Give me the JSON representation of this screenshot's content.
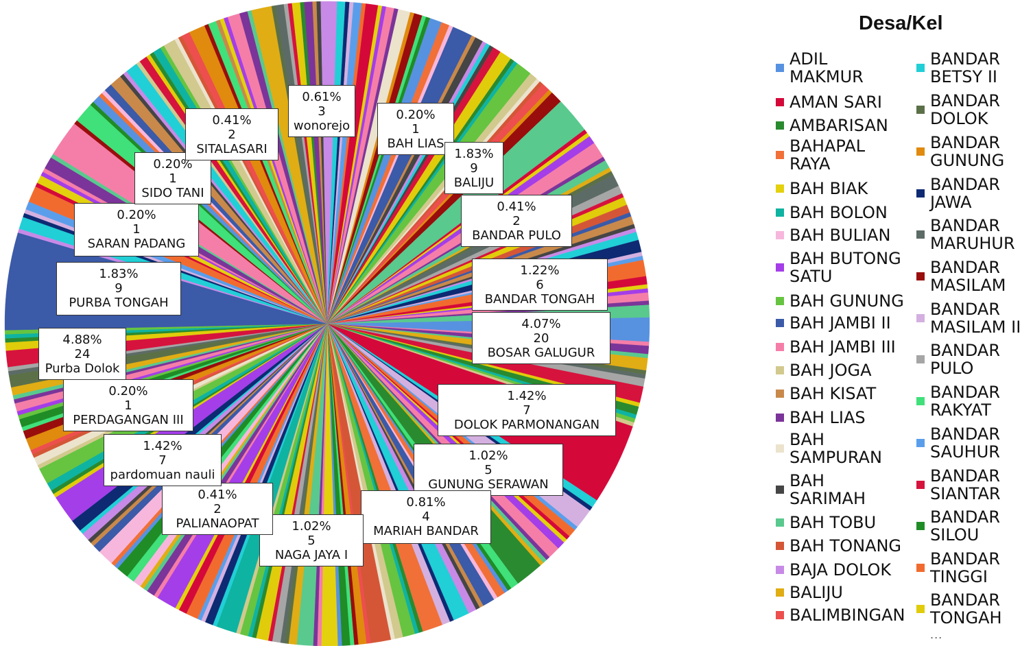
{
  "chart_data": {
    "type": "pie",
    "legend_title": "Desa/Kel",
    "legend_position": "right",
    "legend_items": [
      {
        "label": "ADIL\nMAKMUR",
        "color": "#5792e0"
      },
      {
        "label": "AMAN SARI",
        "color": "#d4093a"
      },
      {
        "label": "AMBARISAN",
        "color": "#2a8a2f"
      },
      {
        "label": "BAHAPAL\nRAYA",
        "color": "#f07038"
      },
      {
        "label": "BAH BIAK",
        "color": "#e3d10e"
      },
      {
        "label": "BAH BOLON",
        "color": "#0fb3a1"
      },
      {
        "label": "BAH BULIAN",
        "color": "#f7b7dc"
      },
      {
        "label": "BAH BUTONG\nSATU",
        "color": "#a43ee8"
      },
      {
        "label": "BAH GUNUNG",
        "color": "#66c440"
      },
      {
        "label": "BAH JAMBI II",
        "color": "#3b5aa8"
      },
      {
        "label": "BAH JAMBI III",
        "color": "#f57ea8"
      },
      {
        "label": "BAH JOGA",
        "color": "#d2c98e"
      },
      {
        "label": "BAH KISAT",
        "color": "#c9894a"
      },
      {
        "label": "BAH LIAS",
        "color": "#7b3499"
      },
      {
        "label": "BAH\nSAMPURAN",
        "color": "#ebe3cc"
      },
      {
        "label": "BAH\nSARIMAH",
        "color": "#454545"
      },
      {
        "label": "BAH TOBU",
        "color": "#59c98e"
      },
      {
        "label": "BAH TONANG",
        "color": "#d45637"
      },
      {
        "label": "BAJA DOLOK",
        "color": "#c78ae6"
      },
      {
        "label": "BALIJU",
        "color": "#e0ad14"
      },
      {
        "label": "BALIMBINGAN",
        "color": "#ed4e4e"
      },
      {
        "label": "BANDAR\nBETSY II",
        "color": "#21cfd6"
      },
      {
        "label": "BANDAR\nDOLOK",
        "color": "#5c7048"
      },
      {
        "label": "BANDAR\nGUNUNG",
        "color": "#e08a0e"
      },
      {
        "label": "BANDAR\nJAWA",
        "color": "#0d2a73"
      },
      {
        "label": "BANDAR\nMARUHUR",
        "color": "#5c6b66"
      },
      {
        "label": "BANDAR\nMASILAM",
        "color": "#990d0d"
      },
      {
        "label": "BANDAR\nMASILAM II",
        "color": "#d4b0e0"
      },
      {
        "label": "BANDAR\nPULO",
        "color": "#a6a6a6"
      },
      {
        "label": "BANDAR\nRAKYAT",
        "color": "#40e07a"
      },
      {
        "label": "BANDAR\nSAUHUR",
        "color": "#5a9eeb"
      },
      {
        "label": "BANDAR\nSIANTAR",
        "color": "#d6133d"
      },
      {
        "label": "BANDAR\nSILOU",
        "color": "#1f8c26"
      },
      {
        "label": "BANDAR\nTINGGI",
        "color": "#f26b2e"
      },
      {
        "label": "BANDAR\nTONGAH",
        "color": "#e0cc0a"
      }
    ],
    "legend_more": "...",
    "labeled_slices": [
      {
        "name": "wonorejo",
        "percent": "0.61%",
        "count": 3
      },
      {
        "name": "BAH LIAS",
        "percent": "0.20%",
        "count": 1
      },
      {
        "name": "BALIJU",
        "percent": "1.83%",
        "count": 9
      },
      {
        "name": "BANDAR PULO",
        "percent": "0.41%",
        "count": 2
      },
      {
        "name": "BANDAR TONGAH",
        "percent": "1.22%",
        "count": 6
      },
      {
        "name": "BOSAR GALUGUR",
        "percent": "4.07%",
        "count": 20
      },
      {
        "name": "DOLOK PARMONANGAN",
        "percent": "1.42%",
        "count": 7
      },
      {
        "name": "GUNUNG SERAWAN",
        "percent": "1.02%",
        "count": 5
      },
      {
        "name": "MARIAH BANDAR",
        "percent": "0.81%",
        "count": 4
      },
      {
        "name": "NAGA JAYA I",
        "percent": "1.02%",
        "count": 5
      },
      {
        "name": "PALIANAOPAT",
        "percent": "0.41%",
        "count": 2
      },
      {
        "name": "pardomuan nauli",
        "percent": "1.42%",
        "count": 7
      },
      {
        "name": "PERDAGANGAN III",
        "percent": "0.20%",
        "count": 1
      },
      {
        "name": "Purba Dolok",
        "percent": "4.88%",
        "count": 24
      },
      {
        "name": "PURBA TONGAH",
        "percent": "1.83%",
        "count": 9
      },
      {
        "name": "SARAN PADANG",
        "percent": "0.20%",
        "count": 1
      },
      {
        "name": "SIDO TANI",
        "percent": "0.20%",
        "count": 1
      },
      {
        "name": "SITALASARI",
        "percent": "0.41%",
        "count": 2
      }
    ]
  }
}
